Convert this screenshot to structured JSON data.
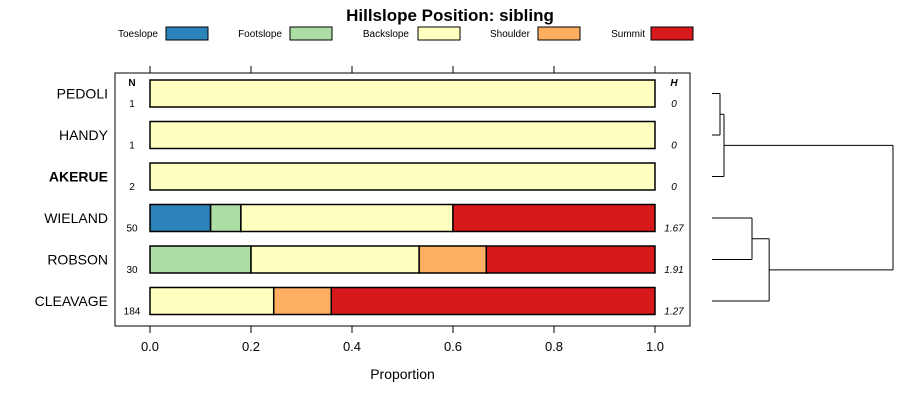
{
  "chart_data": {
    "type": "bar",
    "orientation": "horizontal",
    "stacked": true,
    "title": "Hillslope Position: sibling",
    "xlabel": "Proportion",
    "ylabel": "",
    "xlim": [
      0,
      1
    ],
    "x_ticks": [
      "0.0",
      "0.2",
      "0.4",
      "0.6",
      "0.8",
      "1.0"
    ],
    "x_tick_values": [
      0,
      0.2,
      0.4,
      0.6,
      0.8,
      1.0
    ],
    "grid": false,
    "legend_position": "top",
    "n_header": "N",
    "h_header": "H",
    "series": [
      {
        "name": "Toeslope",
        "color": "#2b83ba"
      },
      {
        "name": "Footslope",
        "color": "#abdda4"
      },
      {
        "name": "Backslope",
        "color": "#ffffbf"
      },
      {
        "name": "Shoulder",
        "color": "#fdae61"
      },
      {
        "name": "Summit",
        "color": "#d7191c"
      }
    ],
    "categories": [
      "PEDOLI",
      "HANDY",
      "AKERUE",
      "WIELAND",
      "ROBSON",
      "CLEAVAGE"
    ],
    "bold_category": "AKERUE",
    "rows": [
      {
        "label": "PEDOLI",
        "n": "1",
        "h": "0",
        "values": [
          0,
          0,
          1.0,
          0,
          0
        ]
      },
      {
        "label": "HANDY",
        "n": "1",
        "h": "0",
        "values": [
          0,
          0,
          1.0,
          0,
          0
        ]
      },
      {
        "label": "AKERUE",
        "n": "2",
        "h": "0",
        "values": [
          0,
          0,
          1.0,
          0,
          0
        ]
      },
      {
        "label": "WIELAND",
        "n": "50",
        "h": "1.67",
        "values": [
          0.12,
          0.06,
          0.42,
          0,
          0.4
        ]
      },
      {
        "label": "ROBSON",
        "n": "30",
        "h": "1.91",
        "values": [
          0,
          0.2,
          0.333,
          0.133,
          0.334
        ]
      },
      {
        "label": "CLEAVAGE",
        "n": "184",
        "h": "1.27",
        "values": [
          0,
          0,
          0.245,
          0.114,
          0.641
        ]
      }
    ],
    "dendrogram": {
      "merges": [
        {
          "left": "PEDOLI",
          "right": "HANDY",
          "height": 0.0
        },
        {
          "left": "PEDOLI+HANDY",
          "right": "AKERUE",
          "height": 0.02
        },
        {
          "left": "WIELAND",
          "right": "ROBSON",
          "height": 0.21
        },
        {
          "left": "WIELAND+ROBSON",
          "right": "CLEAVAGE",
          "height": 0.3
        },
        {
          "left": "PEDOLI+HANDY+AKERUE",
          "right": "WIELAND+ROBSON+CLEAVAGE",
          "height": 0.95
        }
      ]
    }
  }
}
